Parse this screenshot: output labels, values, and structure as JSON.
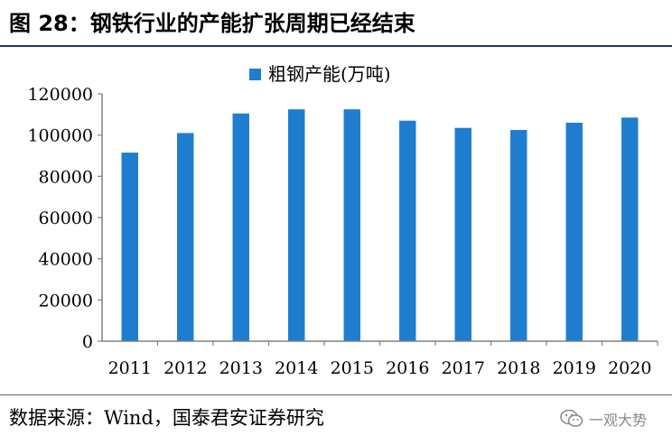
{
  "figure": {
    "title": "图 28：钢铁行业的产能扩张周期已经结束",
    "source": "数据来源：Wind，国泰君安证券研究",
    "watermark": "一观大势",
    "watermark_icon": "wechat-icon"
  },
  "colors": {
    "bar": "#1f7dd0",
    "axis": "#808080",
    "title_rule": "#1a3a6e"
  },
  "chart_data": {
    "type": "bar",
    "title": "",
    "categories": [
      "2011",
      "2012",
      "2013",
      "2014",
      "2015",
      "2016",
      "2017",
      "2018",
      "2019",
      "2020"
    ],
    "series": [
      {
        "name": "粗钢产能(万吨)",
        "values": [
          91500,
          101000,
          110500,
          112500,
          112500,
          107000,
          103500,
          102500,
          106000,
          108500
        ]
      }
    ],
    "yticks": [
      "0",
      "20000",
      "40000",
      "60000",
      "80000",
      "100000",
      "120000"
    ],
    "ylim": [
      0,
      120000
    ],
    "xlabel": "",
    "ylabel": "",
    "grid": false,
    "legend_position": "top-center"
  }
}
